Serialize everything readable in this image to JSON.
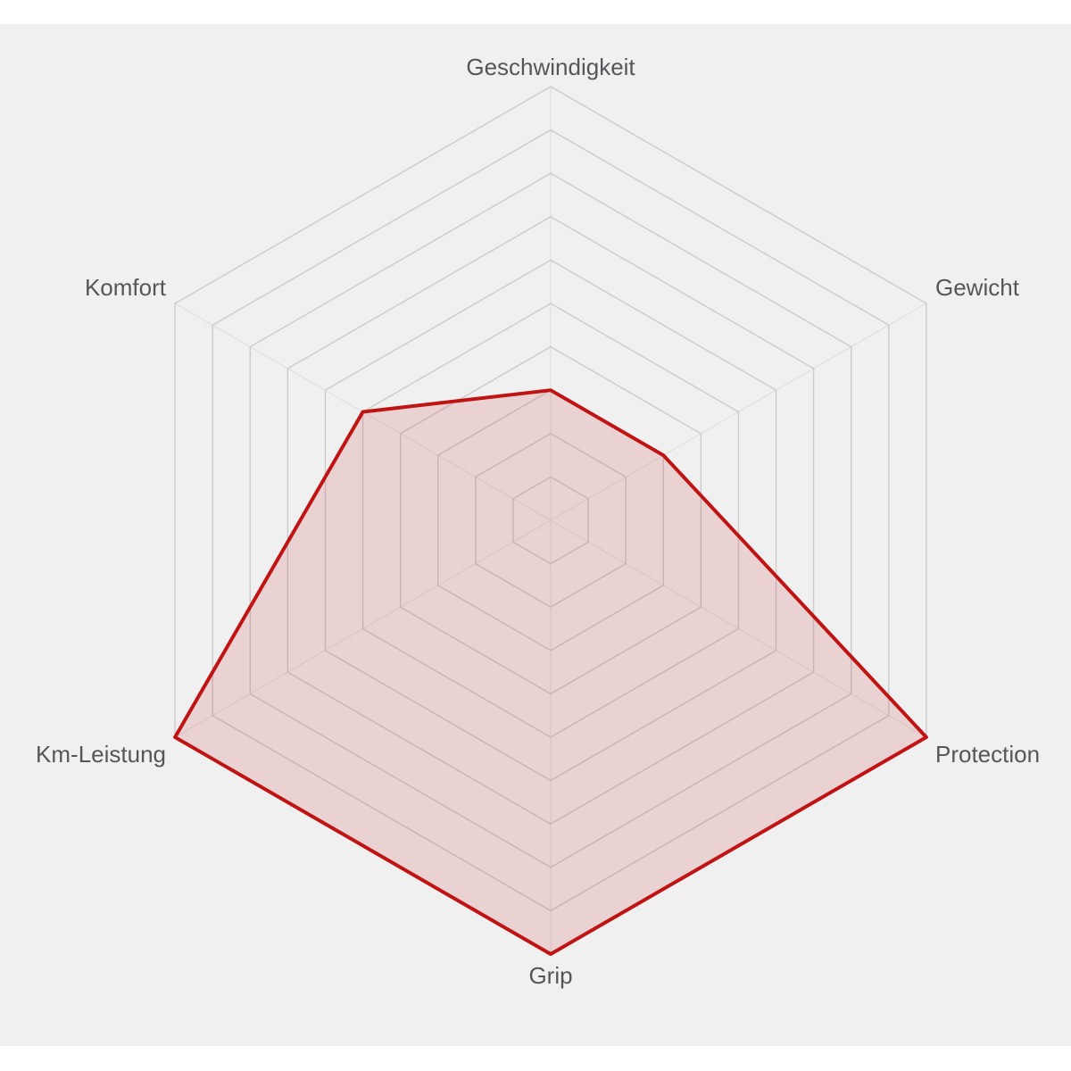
{
  "chart_data": {
    "type": "radar",
    "categories": [
      "Geschwindigkeit",
      "Gewicht",
      "Protection",
      "Grip",
      "Km-Leistung",
      "Komfort"
    ],
    "values": [
      3,
      3,
      10,
      10,
      10,
      5
    ],
    "scale_min": 0,
    "scale_max": 10,
    "rings": 10,
    "grid_shape": "hexagon",
    "legend": "none",
    "colors": {
      "series_stroke": "#c01414",
      "series_fill": "rgba(204,0,0,0.12)",
      "ring_line": "#cbcbcb",
      "spoke_line": "#e0e0e0",
      "label_text": "#54575a",
      "panel_background": "#f0f0f0",
      "page_background": "#ffffff"
    }
  }
}
